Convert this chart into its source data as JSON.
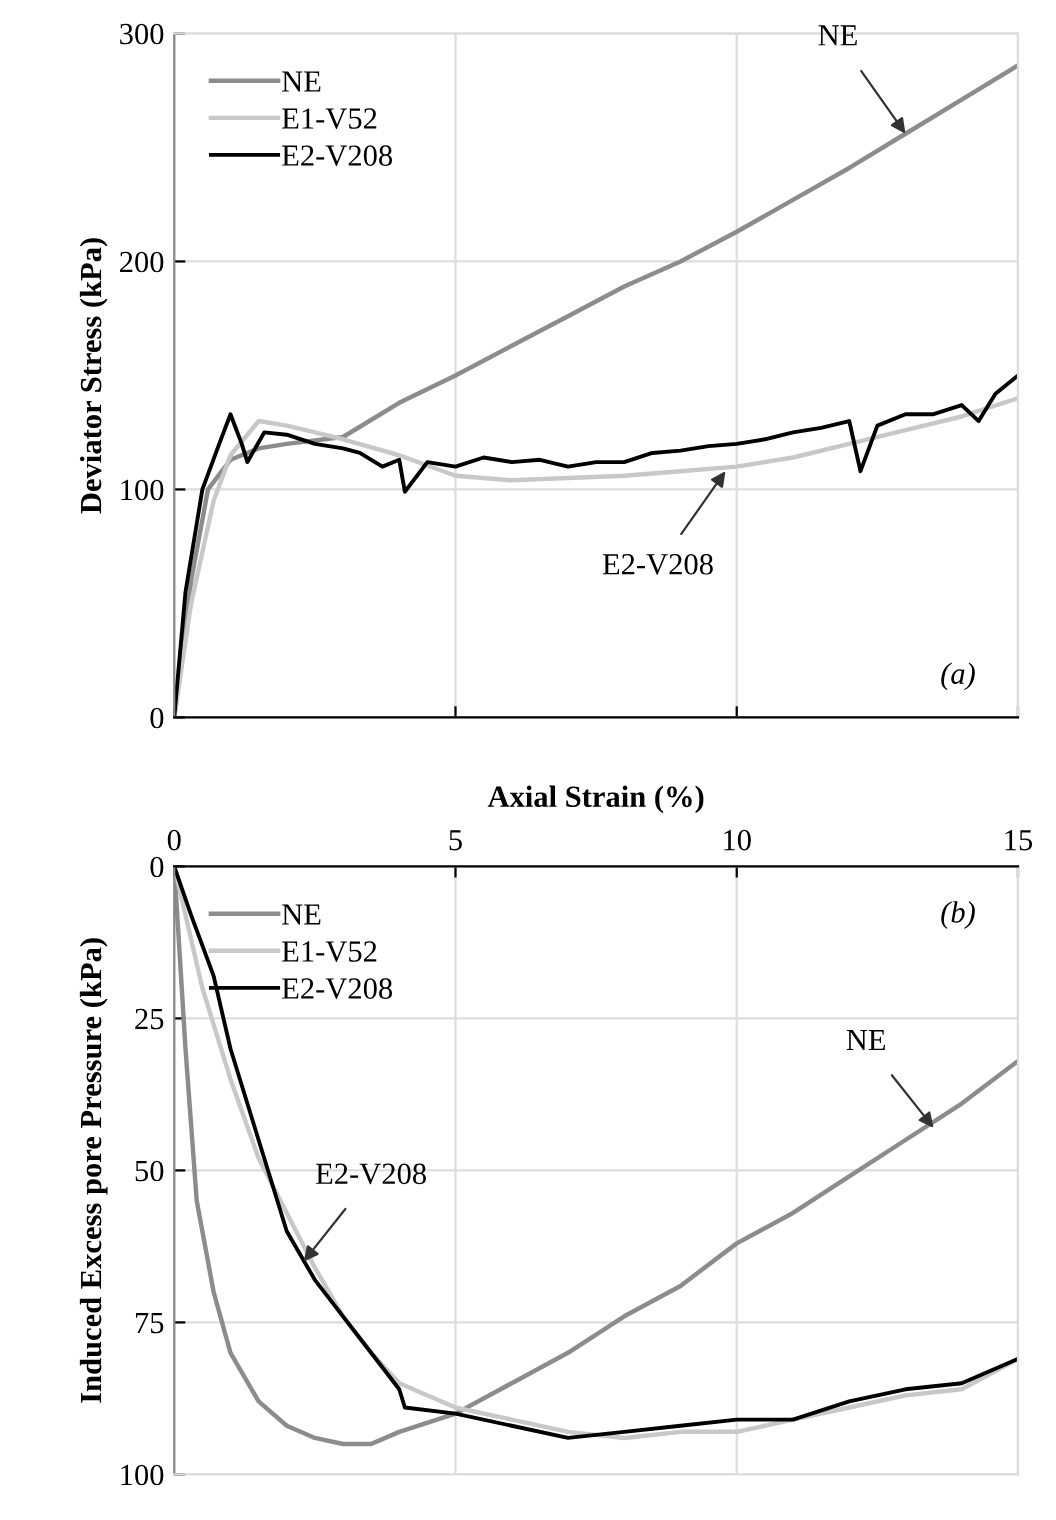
{
  "chart_data": [
    {
      "type": "line",
      "ylabel": "Deviator Stress (kPa)",
      "xlim": [
        0,
        15
      ],
      "xticks": [
        {
          "value": 0,
          "label": null
        },
        {
          "value": 5,
          "label": null
        },
        {
          "value": 10,
          "label": null
        },
        {
          "value": 15,
          "label": null
        }
      ],
      "ylim": [
        0,
        300
      ],
      "yticks": [
        0,
        100,
        200,
        300
      ],
      "tick_labels": "y",
      "grid": true,
      "legend": "top left",
      "line_style": "solid",
      "annotations": [
        {
          "text": "NE",
          "x": 13,
          "y": 256
        },
        {
          "text": "E2-V208",
          "x": 9.8,
          "y": 108
        },
        "(a)"
      ],
      "series": [
        {
          "name": "NE",
          "color": "#8c8c8c",
          "x": [
            0,
            0.3,
            0.6,
            1,
            1.5,
            2,
            3,
            4,
            5,
            6,
            7,
            8,
            9,
            10,
            11,
            12,
            13,
            14,
            15
          ],
          "values": [
            0,
            60,
            100,
            113,
            118,
            120,
            123,
            138,
            150,
            163,
            176,
            189,
            200,
            213,
            227,
            241,
            256,
            271,
            286
          ]
        },
        {
          "name": "E1-V52",
          "color": "#c8c8c8",
          "x": [
            0,
            0.3,
            0.7,
            1,
            1.5,
            2,
            2.5,
            3,
            4,
            5,
            6,
            7,
            8,
            9,
            10,
            11,
            12,
            13,
            14,
            15
          ],
          "values": [
            0,
            50,
            95,
            115,
            130,
            128,
            125,
            122,
            115,
            106,
            104,
            105,
            106,
            108,
            110,
            114,
            120,
            126,
            132,
            140
          ]
        },
        {
          "name": "E2-V208",
          "color": "#000000",
          "x": [
            0,
            0.2,
            0.5,
            0.8,
            1,
            1.2,
            1.3,
            1.6,
            2,
            2.5,
            3,
            3.3,
            3.7,
            4,
            4.1,
            4.5,
            5,
            5.5,
            6,
            6.5,
            7,
            7.5,
            8,
            8.5,
            9,
            9.5,
            10,
            10.5,
            11,
            11.5,
            12,
            12.2,
            12.5,
            13,
            13.5,
            14,
            14.3,
            14.6,
            15
          ],
          "values": [
            0,
            55,
            100,
            120,
            133,
            120,
            112,
            125,
            124,
            120,
            118,
            116,
            110,
            113,
            99,
            112,
            110,
            114,
            112,
            113,
            110,
            112,
            112,
            116,
            117,
            119,
            120,
            122,
            125,
            127,
            130,
            108,
            128,
            133,
            133,
            137,
            130,
            142,
            150
          ]
        }
      ]
    },
    {
      "type": "line",
      "xlabel": "Axial Strain (%)",
      "ylabel": "Induced Excess pore Pressure (kPa)",
      "xlim": [
        0,
        15
      ],
      "xticks": [
        0,
        5,
        10,
        15
      ],
      "ylim": [
        100,
        0
      ],
      "yticks": [
        0,
        25,
        50,
        75,
        100
      ],
      "grid": true,
      "legend": "top left",
      "line_style": "solid",
      "annotations": [
        {
          "text": "NE",
          "x": 13.5,
          "y": 43
        },
        {
          "text": "E2-V208",
          "x": 2.3,
          "y": 65
        },
        "(b)"
      ],
      "series": [
        {
          "name": "NE",
          "color": "#8c8c8c",
          "x": [
            0,
            0.2,
            0.4,
            0.7,
            1,
            1.5,
            2,
            2.5,
            3,
            3.5,
            4,
            5,
            6,
            7,
            8,
            9,
            10,
            11,
            12,
            13,
            14,
            15
          ],
          "values": [
            0,
            30,
            55,
            70,
            80,
            88,
            92,
            94,
            95,
            95,
            93,
            90,
            85,
            80,
            74,
            69,
            62,
            57,
            51,
            45,
            39,
            32
          ]
        },
        {
          "name": "E1-V52",
          "color": "#c8c8c8",
          "x": [
            0,
            0.5,
            1,
            1.5,
            2,
            2.5,
            3,
            3.5,
            4,
            5,
            6,
            7,
            8,
            9,
            10,
            11,
            12,
            13,
            14,
            15
          ],
          "values": [
            0,
            20,
            35,
            48,
            57,
            66,
            74,
            80,
            85,
            89,
            91,
            93,
            94,
            93,
            93,
            91,
            89,
            87,
            86,
            81
          ]
        },
        {
          "name": "E2-V208",
          "color": "#000000",
          "x": [
            0,
            0.3,
            0.7,
            1,
            1.5,
            2,
            2.5,
            3,
            3.5,
            4,
            4.1,
            5,
            6,
            7,
            8,
            9,
            10,
            11,
            12,
            13,
            14,
            15
          ],
          "values": [
            0,
            8,
            18,
            30,
            45,
            60,
            68,
            74,
            80,
            86,
            89,
            90,
            92,
            94,
            93,
            92,
            91,
            91,
            88,
            86,
            85,
            81
          ]
        }
      ]
    }
  ]
}
